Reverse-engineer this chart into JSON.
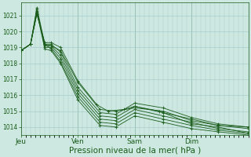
{
  "bg_color": "#cce8e0",
  "grid_color": "#a8cccc",
  "line_color": "#1a5c1a",
  "xlabel": "Pression niveau de la mer( hPa )",
  "xlabel_fontsize": 7.5,
  "ylim": [
    1013.5,
    1021.8
  ],
  "yticks": [
    1014,
    1015,
    1016,
    1017,
    1018,
    1019,
    1020,
    1021
  ],
  "day_labels": [
    "Jeu",
    "Ven",
    "Sam",
    "Dim"
  ],
  "day_positions": [
    0,
    72,
    144,
    216
  ],
  "total_steps": 288,
  "series": [
    {
      "waypoints": [
        [
          0,
          1018.8
        ],
        [
          12,
          1019.2
        ],
        [
          20,
          1021.1
        ],
        [
          30,
          1019.2
        ],
        [
          38,
          1019.1
        ],
        [
          50,
          1018.8
        ],
        [
          72,
          1016.8
        ],
        [
          100,
          1015.1
        ],
        [
          120,
          1015.0
        ],
        [
          144,
          1015.2
        ],
        [
          180,
          1015.0
        ],
        [
          216,
          1014.4
        ],
        [
          250,
          1014.1
        ],
        [
          288,
          1014.0
        ]
      ]
    },
    {
      "waypoints": [
        [
          0,
          1018.8
        ],
        [
          12,
          1019.2
        ],
        [
          20,
          1021.2
        ],
        [
          30,
          1019.2
        ],
        [
          38,
          1019.2
        ],
        [
          50,
          1018.7
        ],
        [
          72,
          1016.5
        ],
        [
          100,
          1014.9
        ],
        [
          120,
          1014.8
        ],
        [
          144,
          1015.5
        ],
        [
          180,
          1015.2
        ],
        [
          216,
          1014.6
        ],
        [
          250,
          1014.2
        ],
        [
          288,
          1014.0
        ]
      ]
    },
    {
      "waypoints": [
        [
          0,
          1018.8
        ],
        [
          12,
          1019.2
        ],
        [
          20,
          1021.3
        ],
        [
          30,
          1019.1
        ],
        [
          38,
          1019.1
        ],
        [
          50,
          1018.5
        ],
        [
          72,
          1016.3
        ],
        [
          100,
          1014.7
        ],
        [
          120,
          1014.6
        ],
        [
          144,
          1015.3
        ],
        [
          180,
          1014.9
        ],
        [
          216,
          1014.5
        ],
        [
          250,
          1014.1
        ],
        [
          288,
          1013.9
        ]
      ]
    },
    {
      "waypoints": [
        [
          0,
          1018.8
        ],
        [
          12,
          1019.2
        ],
        [
          20,
          1021.4
        ],
        [
          30,
          1019.0
        ],
        [
          38,
          1019.0
        ],
        [
          50,
          1018.3
        ],
        [
          72,
          1016.1
        ],
        [
          100,
          1014.5
        ],
        [
          120,
          1014.4
        ],
        [
          144,
          1015.1
        ],
        [
          180,
          1014.7
        ],
        [
          216,
          1014.3
        ],
        [
          250,
          1013.9
        ],
        [
          288,
          1013.7
        ]
      ]
    },
    {
      "waypoints": [
        [
          0,
          1018.8
        ],
        [
          12,
          1019.2
        ],
        [
          20,
          1021.5
        ],
        [
          30,
          1019.2
        ],
        [
          38,
          1018.9
        ],
        [
          50,
          1018.1
        ],
        [
          72,
          1015.9
        ],
        [
          100,
          1014.3
        ],
        [
          120,
          1014.2
        ],
        [
          144,
          1014.9
        ],
        [
          180,
          1014.5
        ],
        [
          216,
          1014.1
        ],
        [
          250,
          1013.8
        ],
        [
          288,
          1013.6
        ]
      ]
    },
    {
      "waypoints": [
        [
          0,
          1018.8
        ],
        [
          12,
          1019.2
        ],
        [
          20,
          1021.1
        ],
        [
          30,
          1019.3
        ],
        [
          38,
          1019.3
        ],
        [
          50,
          1019.0
        ],
        [
          72,
          1016.9
        ],
        [
          96,
          1015.4
        ],
        [
          110,
          1015.0
        ],
        [
          130,
          1015.1
        ],
        [
          144,
          1015.3
        ],
        [
          175,
          1015.0
        ],
        [
          216,
          1014.2
        ],
        [
          250,
          1014.0
        ],
        [
          288,
          1013.6
        ]
      ]
    },
    {
      "waypoints": [
        [
          0,
          1018.8
        ],
        [
          12,
          1019.2
        ],
        [
          20,
          1021.2
        ],
        [
          30,
          1018.9
        ],
        [
          38,
          1018.8
        ],
        [
          50,
          1018.0
        ],
        [
          72,
          1015.7
        ],
        [
          100,
          1014.1
        ],
        [
          120,
          1014.0
        ],
        [
          144,
          1014.7
        ],
        [
          180,
          1014.3
        ],
        [
          216,
          1013.9
        ],
        [
          250,
          1013.7
        ],
        [
          288,
          1013.5
        ]
      ]
    }
  ]
}
